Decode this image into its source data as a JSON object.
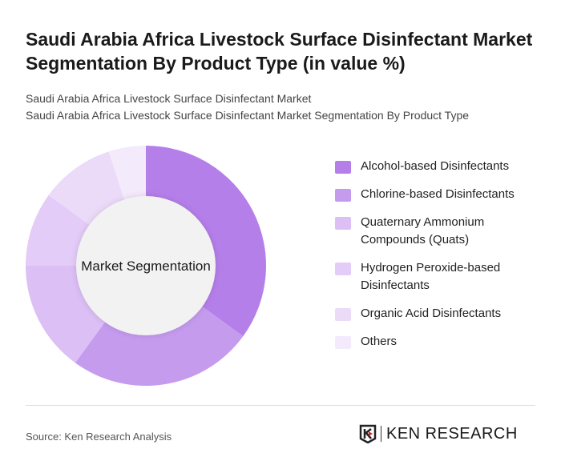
{
  "title": "Saudi Arabia Africa Livestock Surface Disinfectant Market Segmentation By Product Type (in value %)",
  "subtitle_1": "Saudi Arabia Africa Livestock Surface Disinfectant Market",
  "subtitle_2": "Saudi Arabia Africa Livestock Surface Disinfectant Market Segmentation By Product Type",
  "chart_data": {
    "type": "pie",
    "donut": true,
    "center_label": "Market Segmentation",
    "categories": [
      "Alcohol-based Disinfectants",
      "Chlorine-based Disinfectants",
      "Quaternary Ammonium Compounds (Quats)",
      "Hydrogen Peroxide-based Disinfectants",
      "Organic Acid Disinfectants",
      "Others"
    ],
    "values": [
      35,
      25,
      15,
      10,
      10,
      5
    ],
    "colors": [
      "#b57fea",
      "#c59bee",
      "#dbbff5",
      "#e3ccf7",
      "#ebdbf9",
      "#f3eafc"
    ],
    "legend_position": "right"
  },
  "source": "Source: Ken Research Analysis",
  "logo_text": "KEN RESEARCH"
}
